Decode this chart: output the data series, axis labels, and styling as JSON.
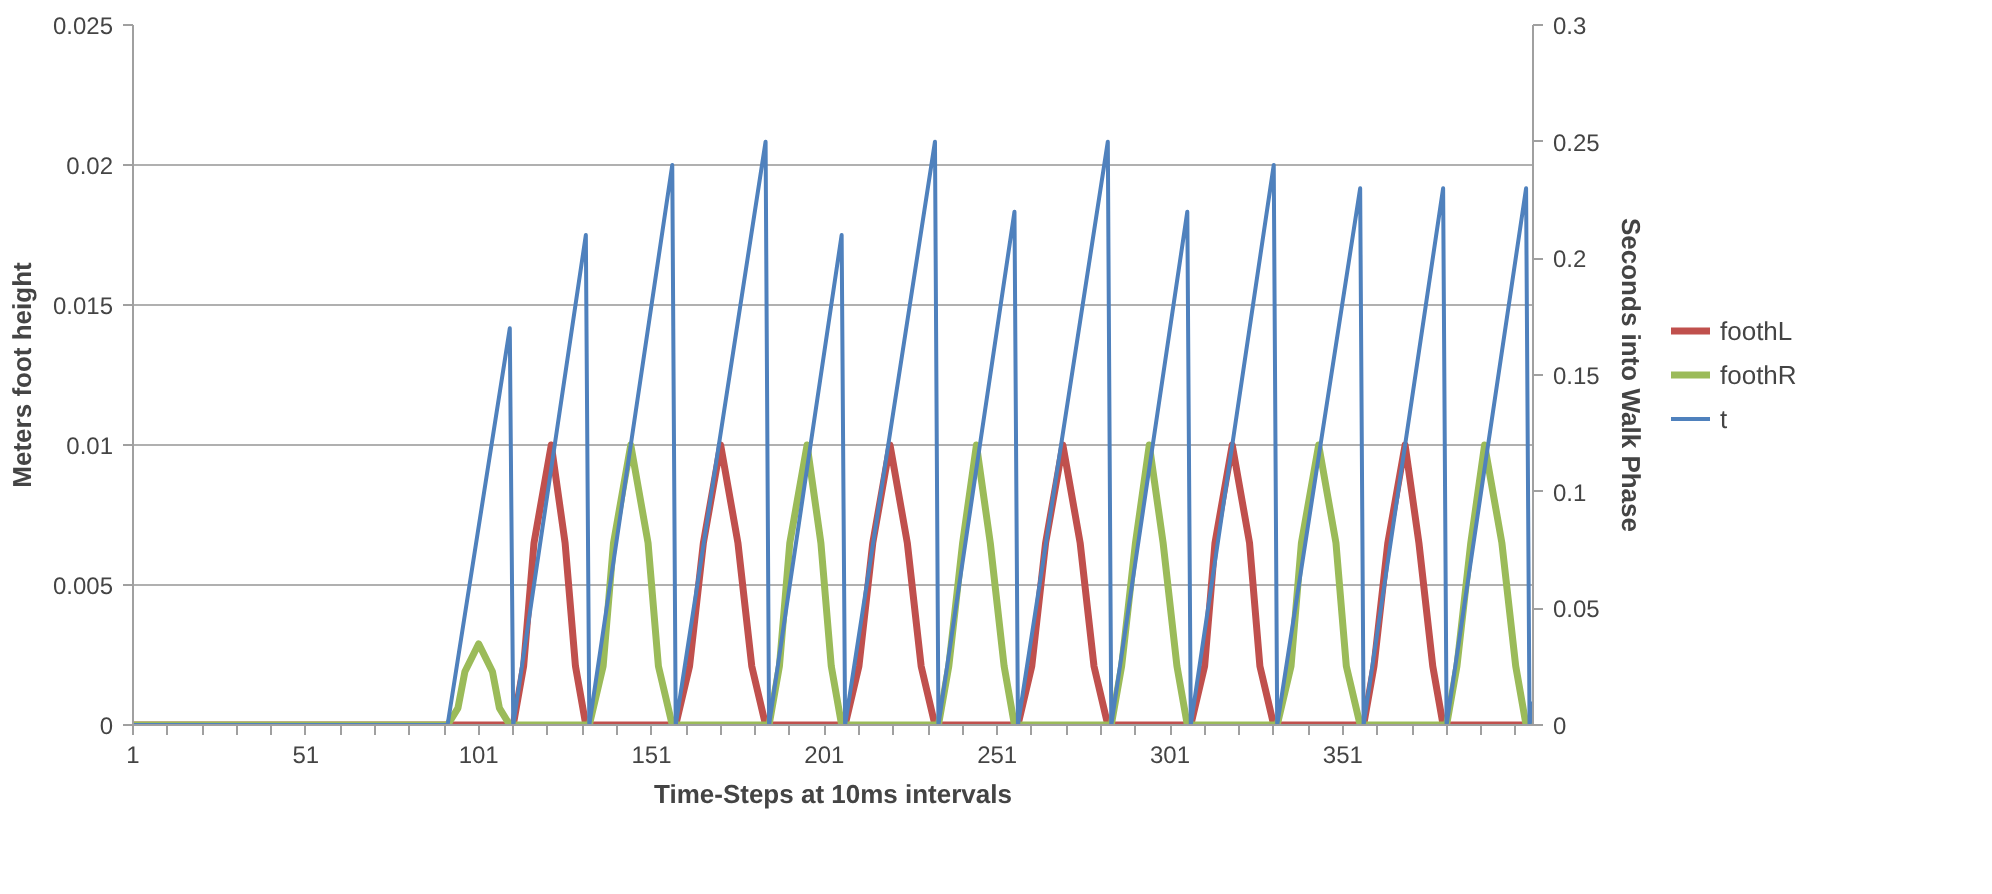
{
  "chart_data": {
    "type": "line",
    "xlabel": "Time-Steps at 10ms intervals",
    "ylabel": "Meters foot height",
    "y2label": "Seconds into Walk Phase",
    "xlim": [
      1,
      406
    ],
    "xticks": [
      1,
      {
        "value": 11,
        "label": null
      },
      {
        "value": 21,
        "label": null
      },
      {
        "value": 31,
        "label": null
      },
      {
        "value": 41,
        "label": null
      },
      51,
      {
        "value": 61,
        "label": null
      },
      {
        "value": 71,
        "label": null
      },
      {
        "value": 81,
        "label": null
      },
      {
        "value": 91,
        "label": null
      },
      101,
      {
        "value": 111,
        "label": null
      },
      {
        "value": 121,
        "label": null
      },
      {
        "value": 131,
        "label": null
      },
      {
        "value": 141,
        "label": null
      },
      151,
      {
        "value": 161,
        "label": null
      },
      {
        "value": 171,
        "label": null
      },
      {
        "value": 181,
        "label": null
      },
      {
        "value": 191,
        "label": null
      },
      201,
      {
        "value": 211,
        "label": null
      },
      {
        "value": 221,
        "label": null
      },
      {
        "value": 231,
        "label": null
      },
      {
        "value": 241,
        "label": null
      },
      251,
      {
        "value": 261,
        "label": null
      },
      {
        "value": 271,
        "label": null
      },
      {
        "value": 281,
        "label": null
      },
      {
        "value": 291,
        "label": null
      },
      301,
      {
        "value": 311,
        "label": null
      },
      {
        "value": 321,
        "label": null
      },
      {
        "value": 331,
        "label": null
      },
      {
        "value": 341,
        "label": null
      },
      351,
      {
        "value": 361,
        "label": null
      },
      {
        "value": 371,
        "label": null
      },
      {
        "value": 381,
        "label": null
      },
      {
        "value": 391,
        "label": null
      },
      {
        "value": 401,
        "label": null
      }
    ],
    "ylim": [
      0,
      0.025
    ],
    "yticks": [
      0,
      0.005,
      0.01,
      0.015,
      0.02,
      0.025
    ],
    "y2lim": [
      0,
      0.3
    ],
    "y2ticks": [
      0,
      0.05,
      0.1,
      0.15,
      0.2,
      0.25,
      0.3
    ],
    "grid": "y",
    "legend": "right",
    "marker": "none",
    "line_style": "solid",
    "series": [
      {
        "name": "foothL",
        "color": "#c0504d",
        "x": [
          1,
          111,
          114,
          117,
          122,
          126,
          129,
          132,
          158,
          162,
          166,
          171,
          176,
          180,
          184,
          207,
          211,
          215,
          220,
          225,
          229,
          233,
          257,
          261,
          265,
          270,
          275,
          279,
          283,
          307,
          311,
          314,
          319,
          324,
          327,
          331,
          357,
          360,
          364,
          369,
          373,
          377,
          380,
          406
        ],
        "values": [
          0,
          0,
          0.0021,
          0.0065,
          0.01,
          0.0065,
          0.0021,
          0,
          0,
          0.0021,
          0.0065,
          0.01,
          0.0065,
          0.0021,
          0,
          0,
          0.0021,
          0.0065,
          0.01,
          0.0065,
          0.0021,
          0,
          0,
          0.0021,
          0.0065,
          0.01,
          0.0065,
          0.0021,
          0,
          0,
          0.0021,
          0.0065,
          0.01,
          0.0065,
          0.0021,
          0,
          0,
          0.0021,
          0.0065,
          0.01,
          0.0065,
          0.0021,
          0,
          0
        ]
      },
      {
        "name": "foothR",
        "color": "#9bbb59",
        "x": [
          1,
          92,
          95,
          97,
          101,
          105,
          107,
          110,
          133,
          137,
          140,
          145,
          150,
          153,
          157,
          185,
          188,
          191,
          196,
          200,
          203,
          206,
          234,
          237,
          241,
          245,
          249,
          253,
          256,
          284,
          287,
          291,
          295,
          299,
          303,
          306,
          332,
          336,
          339,
          344,
          349,
          352,
          356,
          381,
          384,
          388,
          392,
          397,
          401,
          404,
          406
        ],
        "values": [
          0,
          0,
          0.0006,
          0.0019,
          0.0029,
          0.0019,
          0.0006,
          0,
          0,
          0.0021,
          0.0065,
          0.01,
          0.0065,
          0.0021,
          0,
          0,
          0.0021,
          0.0065,
          0.01,
          0.0065,
          0.0021,
          0,
          0,
          0.0021,
          0.0065,
          0.01,
          0.0065,
          0.0021,
          0,
          0,
          0.0021,
          0.0065,
          0.01,
          0.0065,
          0.0021,
          0,
          0,
          0.0021,
          0.0065,
          0.01,
          0.0065,
          0.0021,
          0,
          0,
          0.0021,
          0.0065,
          0.01,
          0.0065,
          0.0021,
          0,
          0
        ]
      },
      {
        "name": "t",
        "color": "#4f81bd",
        "axis": "y2",
        "x": [
          1,
          92,
          110,
          111,
          132,
          133,
          157,
          158,
          184,
          185,
          206,
          207,
          233,
          234,
          256,
          257,
          283,
          284,
          306,
          307,
          331,
          332,
          356,
          357,
          380,
          381,
          404,
          405,
          406
        ],
        "values": [
          0,
          0,
          0.17,
          0,
          0.21,
          0,
          0.24,
          0,
          0.25,
          0,
          0.21,
          0,
          0.25,
          0,
          0.22,
          0,
          0.25,
          0,
          0.22,
          0,
          0.24,
          0,
          0.23,
          0,
          0.23,
          0,
          0.23,
          0,
          0.01
        ]
      }
    ]
  }
}
